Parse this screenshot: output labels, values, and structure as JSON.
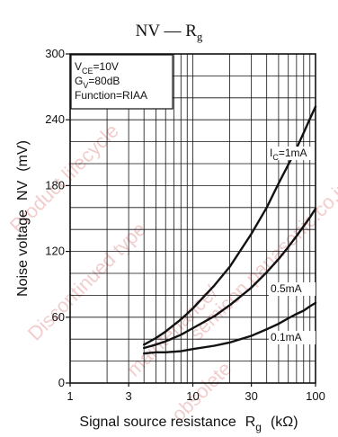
{
  "watermark": [
    "Discontinued type",
    "Product lifecycle",
    "maintenance/",
    "obsolete",
    "semicon.panasonic.co.jp"
  ],
  "chart_data": {
    "type": "line",
    "title": "NV — R",
    "title_sub": "g",
    "xlabel": "Signal source resistance",
    "xlabel_symbol": "R",
    "xlabel_sub": "g",
    "xlabel_unit": "(kΩ)",
    "ylabel": "Noise voltage",
    "ylabel_symbol": "NV",
    "ylabel_unit": "(mV)",
    "x_scale": "log",
    "xlim": [
      1,
      100
    ],
    "x_ticks": [
      1,
      3,
      10,
      30,
      100
    ],
    "x_tick_labels": [
      "1",
      "3",
      "10",
      "30",
      "100"
    ],
    "ylim": [
      0,
      300
    ],
    "y_ticks": [
      0,
      60,
      120,
      180,
      240,
      300
    ],
    "y_tick_labels": [
      "0",
      "60",
      "120",
      "180",
      "240",
      "300"
    ],
    "grid": true,
    "conditions": [
      {
        "label": "V",
        "sub": "CE",
        "value": "=10V"
      },
      {
        "label": "G",
        "sub": "V",
        "value": "=80dB"
      },
      {
        "label": "Function",
        "sub": "",
        "value": "=RIAA"
      }
    ],
    "series": [
      {
        "name_main": "I",
        "name_sub": "C",
        "name_value": "=1mA",
        "x": [
          4,
          5,
          6,
          8,
          10,
          15,
          20,
          30,
          40,
          50,
          60,
          70,
          80,
          90,
          100
        ],
        "values": [
          35,
          41,
          47,
          58,
          68,
          89,
          106,
          136,
          160,
          182,
          199,
          214,
          228,
          241,
          252
        ]
      },
      {
        "name_main": "",
        "name_sub": "",
        "name_value": "0.5mA",
        "x": [
          4,
          5,
          6,
          8,
          10,
          15,
          20,
          30,
          40,
          50,
          60,
          70,
          80,
          90,
          100
        ],
        "values": [
          32,
          35,
          38,
          44,
          50,
          61,
          71,
          87,
          101,
          113,
          124,
          134,
          143,
          151,
          159
        ]
      },
      {
        "name_main": "",
        "name_sub": "",
        "name_value": "0.1mA",
        "x": [
          4,
          5,
          6,
          8,
          10,
          15,
          20,
          30,
          40,
          50,
          60,
          70,
          80,
          90,
          100
        ],
        "values": [
          27,
          28,
          28,
          29,
          31,
          34,
          37,
          43,
          49,
          54,
          59,
          63,
          66,
          70,
          73
        ]
      }
    ]
  }
}
